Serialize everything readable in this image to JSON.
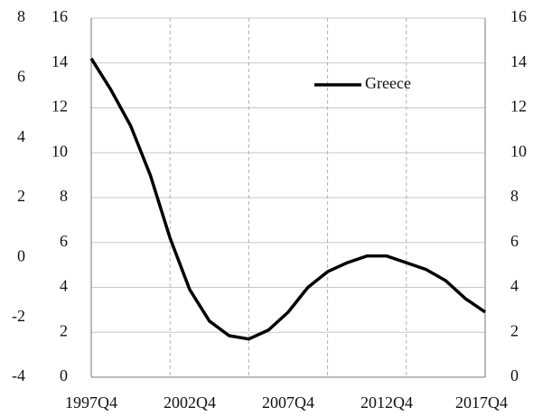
{
  "chart_data": {
    "type": "line",
    "categories": [
      "1997Q4",
      null,
      null,
      null,
      null,
      "2002Q4",
      null,
      null,
      null,
      null,
      "2007Q4",
      null,
      null,
      null,
      null,
      "2012Q4",
      null,
      null,
      null,
      null,
      "2017Q4"
    ],
    "series": [
      {
        "name": "Greece",
        "color": "#000000",
        "values": [
          14.2,
          12.8,
          11.2,
          9.0,
          6.2,
          3.9,
          2.5,
          1.85,
          1.7,
          2.1,
          2.9,
          4.0,
          4.7,
          5.1,
          5.4,
          5.4,
          5.1,
          4.8,
          4.3,
          3.5,
          2.9
        ]
      }
    ],
    "ylim": [
      0,
      16
    ],
    "yticks": [
      0,
      2,
      4,
      6,
      8,
      10,
      12,
      14,
      16
    ],
    "y2lim": [
      -4,
      8
    ],
    "y2ticks": [
      -4,
      -2,
      0,
      2,
      4,
      6,
      8
    ],
    "grid": true,
    "legend": "top-right"
  }
}
